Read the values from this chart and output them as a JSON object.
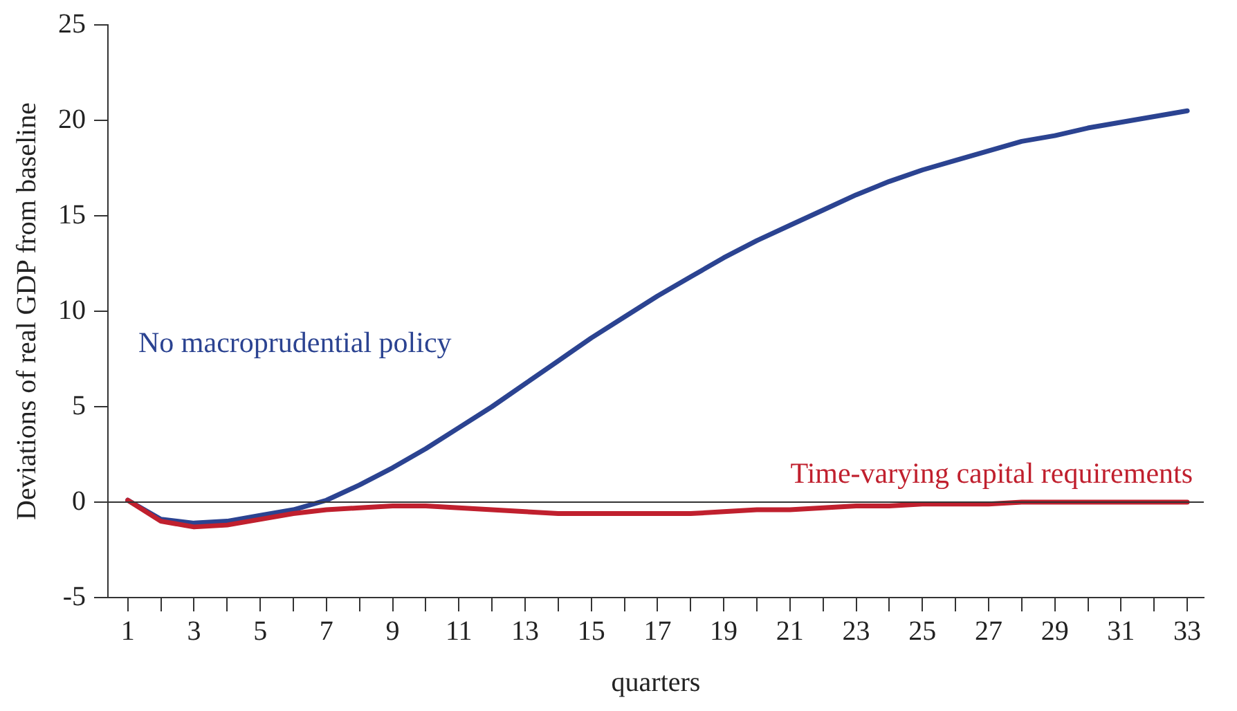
{
  "chart_data": {
    "type": "line",
    "xlabel": "quarters",
    "ylabel": "Deviations of real GDP from baseline",
    "x": [
      1,
      2,
      3,
      4,
      5,
      6,
      7,
      8,
      9,
      10,
      11,
      12,
      13,
      14,
      15,
      16,
      17,
      18,
      19,
      20,
      21,
      22,
      23,
      24,
      25,
      26,
      27,
      28,
      29,
      30,
      31,
      32,
      33
    ],
    "series": [
      {
        "name": "No macroprudential policy",
        "color": "#2b4391",
        "values": [
          0.1,
          -0.9,
          -1.1,
          -1.0,
          -0.7,
          -0.4,
          0.1,
          0.9,
          1.8,
          2.8,
          3.9,
          5.0,
          6.2,
          7.4,
          8.6,
          9.7,
          10.8,
          11.8,
          12.8,
          13.7,
          14.5,
          15.3,
          16.1,
          16.8,
          17.4,
          17.9,
          18.4,
          18.9,
          19.2,
          19.6,
          19.9,
          20.2,
          20.5
        ]
      },
      {
        "name": "Time-varying capital requirements",
        "color": "#c0202e",
        "values": [
          0.1,
          -1.0,
          -1.3,
          -1.2,
          -0.9,
          -0.6,
          -0.4,
          -0.3,
          -0.2,
          -0.2,
          -0.3,
          -0.4,
          -0.5,
          -0.6,
          -0.6,
          -0.6,
          -0.6,
          -0.6,
          -0.5,
          -0.4,
          -0.4,
          -0.3,
          -0.2,
          -0.2,
          -0.1,
          -0.1,
          -0.1,
          0,
          0,
          0,
          0,
          0,
          0
        ]
      }
    ],
    "xlim": [
      0.4,
      33.5
    ],
    "xticks": [
      1,
      {
        "value": 2,
        "label": null
      },
      3,
      {
        "value": 4,
        "label": null
      },
      5,
      {
        "value": 6,
        "label": null
      },
      7,
      {
        "value": 8,
        "label": null
      },
      9,
      {
        "value": 10,
        "label": null
      },
      11,
      {
        "value": 12,
        "label": null
      },
      13,
      {
        "value": 14,
        "label": null
      },
      15,
      {
        "value": 16,
        "label": null
      },
      17,
      {
        "value": 18,
        "label": null
      },
      19,
      {
        "value": 20,
        "label": null
      },
      21,
      {
        "value": 22,
        "label": null
      },
      23,
      {
        "value": 24,
        "label": null
      },
      25,
      {
        "value": 26,
        "label": null
      },
      27,
      {
        "value": 28,
        "label": null
      },
      29,
      {
        "value": 30,
        "label": null
      },
      31,
      {
        "value": 32,
        "label": null
      },
      33
    ],
    "ylim": [
      -5,
      25
    ],
    "yticks": [
      -5,
      0,
      5,
      10,
      15,
      20,
      25
    ],
    "ref_lines": [
      {
        "axis": "y",
        "value": 0,
        "color": "#333333"
      }
    ],
    "grid": false,
    "legend": false,
    "marker": "none",
    "line_style": "solid"
  }
}
